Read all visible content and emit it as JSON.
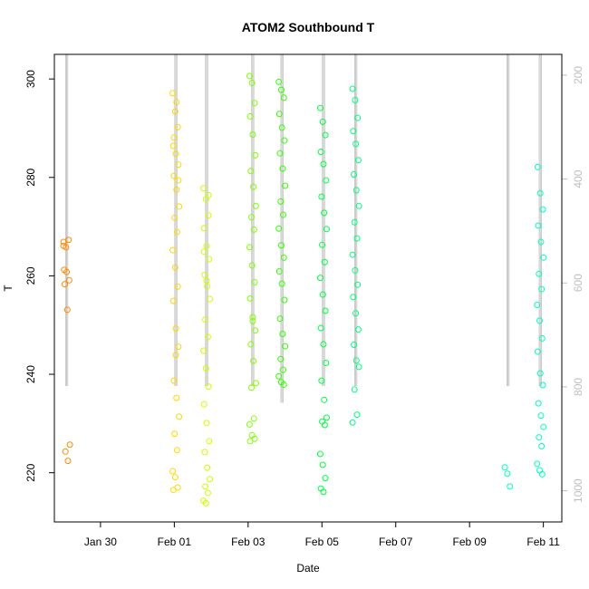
{
  "chart_data": {
    "type": "scatter",
    "title": "ATOM2 Southbound T",
    "xlabel": "Date",
    "ylabel": "T",
    "xlim": [
      "2014-01-28T18:00",
      "2014-02-11T12:00"
    ],
    "ylim": [
      210,
      305
    ],
    "x_ticks": [
      {
        "date": "2014-01-30",
        "label": "Jan 30"
      },
      {
        "date": "2014-02-01",
        "label": "Feb 01"
      },
      {
        "date": "2014-02-03",
        "label": "Feb 03"
      },
      {
        "date": "2014-02-05",
        "label": "Feb 05"
      },
      {
        "date": "2014-02-07",
        "label": "Feb 07"
      },
      {
        "date": "2014-02-09",
        "label": "Feb 09"
      },
      {
        "date": "2014-02-11",
        "label": "Feb 11"
      }
    ],
    "y_ticks": [
      220,
      240,
      260,
      280,
      300
    ],
    "right_axis": {
      "color": "#bebebe",
      "reversed": true,
      "ylim": [
        1060,
        160
      ],
      "ticks": [
        200,
        400,
        600,
        800,
        1000
      ]
    },
    "grid": false,
    "point_colors": [
      "#ff8c00",
      "#ffd700",
      "#ccff00",
      "#80ff00",
      "#33ff00",
      "#00ff40",
      "#00ff80",
      "#00ffbf"
    ],
    "line_color": "#bebebe",
    "series": [
      {
        "color": "#ff8c00",
        "points": [
          [
            "2014-01-29T02:00",
            266.9
          ],
          [
            "2014-01-29T02:00",
            265.8
          ],
          [
            "2014-01-29T02:00",
            267.3
          ],
          [
            "2014-01-29T02:00",
            261.2
          ],
          [
            "2014-01-29T02:00",
            260.8
          ],
          [
            "2014-01-29T02:00",
            259.1
          ],
          [
            "2014-01-29T02:00",
            258.3
          ],
          [
            "2014-01-29T02:00",
            253.1
          ],
          [
            "2014-01-29T02:00",
            225.7
          ],
          [
            "2014-01-29T02:00",
            224.3
          ],
          [
            "2014-01-29T02:00",
            222.4
          ],
          [
            "2014-01-29T02:00",
            266.1
          ]
        ]
      },
      {
        "color": "#ffd700",
        "points": [
          [
            "2014-02-01T01:00",
            297.1
          ],
          [
            "2014-02-01T01:00",
            293.4
          ],
          [
            "2014-02-01T01:00",
            290.2
          ],
          [
            "2014-02-01T01:00",
            286.4
          ],
          [
            "2014-02-01T01:00",
            284.8
          ],
          [
            "2014-02-01T01:00",
            282.6
          ],
          [
            "2014-02-01T01:00",
            280.3
          ],
          [
            "2014-02-01T01:00",
            277.5
          ],
          [
            "2014-02-01T01:00",
            274.1
          ],
          [
            "2014-02-01T01:00",
            271.8
          ],
          [
            "2014-02-01T01:00",
            268.9
          ],
          [
            "2014-02-01T01:00",
            265.2
          ],
          [
            "2014-02-01T01:00",
            261.7
          ],
          [
            "2014-02-01T01:00",
            257.8
          ],
          [
            "2014-02-01T01:00",
            254.9
          ],
          [
            "2014-02-01T01:00",
            249.3
          ],
          [
            "2014-02-01T01:00",
            245.6
          ],
          [
            "2014-02-01T01:00",
            238.7
          ],
          [
            "2014-02-01T01:00",
            235.2
          ],
          [
            "2014-02-01T01:00",
            231.4
          ],
          [
            "2014-02-01T01:00",
            227.9
          ],
          [
            "2014-02-01T01:00",
            224.6
          ],
          [
            "2014-02-01T01:00",
            220.3
          ],
          [
            "2014-02-01T01:00",
            219.1
          ],
          [
            "2014-02-01T01:00",
            217.0
          ],
          [
            "2014-02-01T01:00",
            216.5
          ],
          [
            "2014-02-01T01:00",
            243.9
          ],
          [
            "2014-02-01T01:00",
            279.4
          ],
          [
            "2014-02-01T01:00",
            288.1
          ],
          [
            "2014-02-01T01:00",
            295.3
          ]
        ]
      },
      {
        "color": "#ccff00",
        "points": [
          [
            "2014-02-01T21:00",
            277.8
          ],
          [
            "2014-02-01T21:00",
            275.6
          ],
          [
            "2014-02-01T21:00",
            272.3
          ],
          [
            "2014-02-01T21:00",
            269.7
          ],
          [
            "2014-02-01T21:00",
            266.1
          ],
          [
            "2014-02-01T21:00",
            263.4
          ],
          [
            "2014-02-01T21:00",
            260.2
          ],
          [
            "2014-02-01T21:00",
            257.9
          ],
          [
            "2014-02-01T21:00",
            255.3
          ],
          [
            "2014-02-01T21:00",
            251.1
          ],
          [
            "2014-02-01T21:00",
            247.6
          ],
          [
            "2014-02-01T21:00",
            244.8
          ],
          [
            "2014-02-01T21:00",
            241.2
          ],
          [
            "2014-02-01T21:00",
            237.5
          ],
          [
            "2014-02-01T21:00",
            233.9
          ],
          [
            "2014-02-01T21:00",
            230.1
          ],
          [
            "2014-02-01T21:00",
            226.4
          ],
          [
            "2014-02-01T21:00",
            224.2
          ],
          [
            "2014-02-01T21:00",
            221.0
          ],
          [
            "2014-02-01T21:00",
            218.7
          ],
          [
            "2014-02-01T21:00",
            217.2
          ],
          [
            "2014-02-01T21:00",
            215.9
          ],
          [
            "2014-02-01T21:00",
            214.3
          ],
          [
            "2014-02-01T21:00",
            213.8
          ],
          [
            "2014-02-01T21:00",
            276.4
          ],
          [
            "2014-02-01T21:00",
            264.9
          ],
          [
            "2014-02-01T21:00",
            259.0
          ]
        ]
      },
      {
        "color": "#80ff00",
        "points": [
          [
            "2014-02-03T03:00",
            300.6
          ],
          [
            "2014-02-03T03:00",
            299.2
          ],
          [
            "2014-02-03T03:00",
            295.1
          ],
          [
            "2014-02-03T03:00",
            292.4
          ],
          [
            "2014-02-03T03:00",
            288.7
          ],
          [
            "2014-02-03T03:00",
            284.5
          ],
          [
            "2014-02-03T03:00",
            281.3
          ],
          [
            "2014-02-03T03:00",
            278.1
          ],
          [
            "2014-02-03T03:00",
            274.2
          ],
          [
            "2014-02-03T03:00",
            271.9
          ],
          [
            "2014-02-03T03:00",
            269.4
          ],
          [
            "2014-02-03T03:00",
            265.8
          ],
          [
            "2014-02-03T03:00",
            262.1
          ],
          [
            "2014-02-03T03:00",
            258.7
          ],
          [
            "2014-02-03T03:00",
            255.4
          ],
          [
            "2014-02-03T03:00",
            251.6
          ],
          [
            "2014-02-03T03:00",
            248.9
          ],
          [
            "2014-02-03T03:00",
            246.1
          ],
          [
            "2014-02-03T03:00",
            242.7
          ],
          [
            "2014-02-03T03:00",
            238.2
          ],
          [
            "2014-02-03T03:00",
            237.3
          ],
          [
            "2014-02-03T03:00",
            231.0
          ],
          [
            "2014-02-03T03:00",
            229.8
          ],
          [
            "2014-02-03T03:00",
            227.6
          ],
          [
            "2014-02-03T03:00",
            226.9
          ],
          [
            "2014-02-03T03:00",
            226.4
          ],
          [
            "2014-02-03T03:00",
            250.8
          ]
        ]
      },
      {
        "color": "#33ff00",
        "points": [
          [
            "2014-02-03T22:00",
            299.4
          ],
          [
            "2014-02-03T22:00",
            297.8
          ],
          [
            "2014-02-03T22:00",
            296.2
          ],
          [
            "2014-02-03T22:00",
            292.9
          ],
          [
            "2014-02-03T22:00",
            290.1
          ],
          [
            "2014-02-03T22:00",
            287.5
          ],
          [
            "2014-02-03T22:00",
            284.9
          ],
          [
            "2014-02-03T22:00",
            281.8
          ],
          [
            "2014-02-03T22:00",
            278.3
          ],
          [
            "2014-02-03T22:00",
            275.1
          ],
          [
            "2014-02-03T22:00",
            272.4
          ],
          [
            "2014-02-03T22:00",
            269.6
          ],
          [
            "2014-02-03T22:00",
            266.2
          ],
          [
            "2014-02-03T22:00",
            263.7
          ],
          [
            "2014-02-03T22:00",
            260.9
          ],
          [
            "2014-02-03T22:00",
            258.4
          ],
          [
            "2014-02-03T22:00",
            255.1
          ],
          [
            "2014-02-03T22:00",
            251.3
          ],
          [
            "2014-02-03T22:00",
            248.2
          ],
          [
            "2014-02-03T22:00",
            245.7
          ],
          [
            "2014-02-03T22:00",
            243.1
          ],
          [
            "2014-02-03T22:00",
            240.9
          ],
          [
            "2014-02-03T22:00",
            239.6
          ],
          [
            "2014-02-03T22:00",
            238.4
          ],
          [
            "2014-02-03T22:00",
            237.9
          ]
        ]
      },
      {
        "color": "#00ff40",
        "points": [
          [
            "2014-02-05T01:00",
            294.1
          ],
          [
            "2014-02-05T01:00",
            291.3
          ],
          [
            "2014-02-05T01:00",
            288.6
          ],
          [
            "2014-02-05T01:00",
            285.2
          ],
          [
            "2014-02-05T01:00",
            282.7
          ],
          [
            "2014-02-05T01:00",
            279.4
          ],
          [
            "2014-02-05T01:00",
            276.1
          ],
          [
            "2014-02-05T01:00",
            272.8
          ],
          [
            "2014-02-05T01:00",
            269.5
          ],
          [
            "2014-02-05T01:00",
            266.3
          ],
          [
            "2014-02-05T01:00",
            262.8
          ],
          [
            "2014-02-05T01:00",
            259.6
          ],
          [
            "2014-02-05T01:00",
            256.2
          ],
          [
            "2014-02-05T01:00",
            252.9
          ],
          [
            "2014-02-05T01:00",
            249.4
          ],
          [
            "2014-02-05T01:00",
            246.1
          ],
          [
            "2014-02-05T01:00",
            242.3
          ],
          [
            "2014-02-05T01:00",
            238.7
          ],
          [
            "2014-02-05T01:00",
            234.8
          ],
          [
            "2014-02-05T01:00",
            231.2
          ],
          [
            "2014-02-05T01:00",
            230.4
          ],
          [
            "2014-02-05T01:00",
            229.7
          ],
          [
            "2014-02-05T01:00",
            223.8
          ],
          [
            "2014-02-05T01:00",
            221.6
          ],
          [
            "2014-02-05T01:00",
            218.9
          ],
          [
            "2014-02-05T01:00",
            216.8
          ],
          [
            "2014-02-05T01:00",
            216.1
          ]
        ]
      },
      {
        "color": "#00ff80",
        "points": [
          [
            "2014-02-05T22:00",
            298.0
          ],
          [
            "2014-02-05T22:00",
            295.7
          ],
          [
            "2014-02-05T22:00",
            292.1
          ],
          [
            "2014-02-05T22:00",
            289.4
          ],
          [
            "2014-02-05T22:00",
            286.8
          ],
          [
            "2014-02-05T22:00",
            283.5
          ],
          [
            "2014-02-05T22:00",
            280.6
          ],
          [
            "2014-02-05T22:00",
            277.4
          ],
          [
            "2014-02-05T22:00",
            274.2
          ],
          [
            "2014-02-05T22:00",
            270.9
          ],
          [
            "2014-02-05T22:00",
            267.6
          ],
          [
            "2014-02-05T22:00",
            264.3
          ],
          [
            "2014-02-05T22:00",
            261.1
          ],
          [
            "2014-02-05T22:00",
            258.2
          ],
          [
            "2014-02-05T22:00",
            255.7
          ],
          [
            "2014-02-05T22:00",
            252.4
          ],
          [
            "2014-02-05T22:00",
            249.1
          ],
          [
            "2014-02-05T22:00",
            246.0
          ],
          [
            "2014-02-05T22:00",
            242.8
          ],
          [
            "2014-02-05T22:00",
            241.5
          ],
          [
            "2014-02-05T22:00",
            236.9
          ],
          [
            "2014-02-05T22:00",
            231.8
          ],
          [
            "2014-02-05T22:00",
            230.2
          ]
        ]
      },
      {
        "color": "#00ffbf",
        "points": [
          [
            "2014-02-10T01:00",
            221.1
          ],
          [
            "2014-02-10T01:00",
            219.8
          ],
          [
            "2014-02-10T01:00",
            217.2
          ],
          [
            "2014-02-10T22:00",
            282.1
          ],
          [
            "2014-02-10T22:00",
            276.8
          ],
          [
            "2014-02-10T22:00",
            273.5
          ],
          [
            "2014-02-10T22:00",
            270.2
          ],
          [
            "2014-02-10T22:00",
            266.9
          ],
          [
            "2014-02-10T22:00",
            263.7
          ],
          [
            "2014-02-10T22:00",
            260.4
          ],
          [
            "2014-02-10T22:00",
            257.3
          ],
          [
            "2014-02-10T22:00",
            254.1
          ],
          [
            "2014-02-10T22:00",
            250.9
          ],
          [
            "2014-02-10T22:00",
            247.3
          ],
          [
            "2014-02-10T22:00",
            244.6
          ],
          [
            "2014-02-10T22:00",
            240.2
          ],
          [
            "2014-02-10T22:00",
            237.8
          ],
          [
            "2014-02-10T22:00",
            234.1
          ],
          [
            "2014-02-10T22:00",
            231.6
          ],
          [
            "2014-02-10T22:00",
            229.3
          ],
          [
            "2014-02-10T22:00",
            227.2
          ],
          [
            "2014-02-10T22:00",
            225.4
          ],
          [
            "2014-02-10T22:00",
            221.8
          ],
          [
            "2014-02-10T22:00",
            220.5
          ],
          [
            "2014-02-10T22:00",
            219.7
          ]
        ]
      }
    ]
  }
}
